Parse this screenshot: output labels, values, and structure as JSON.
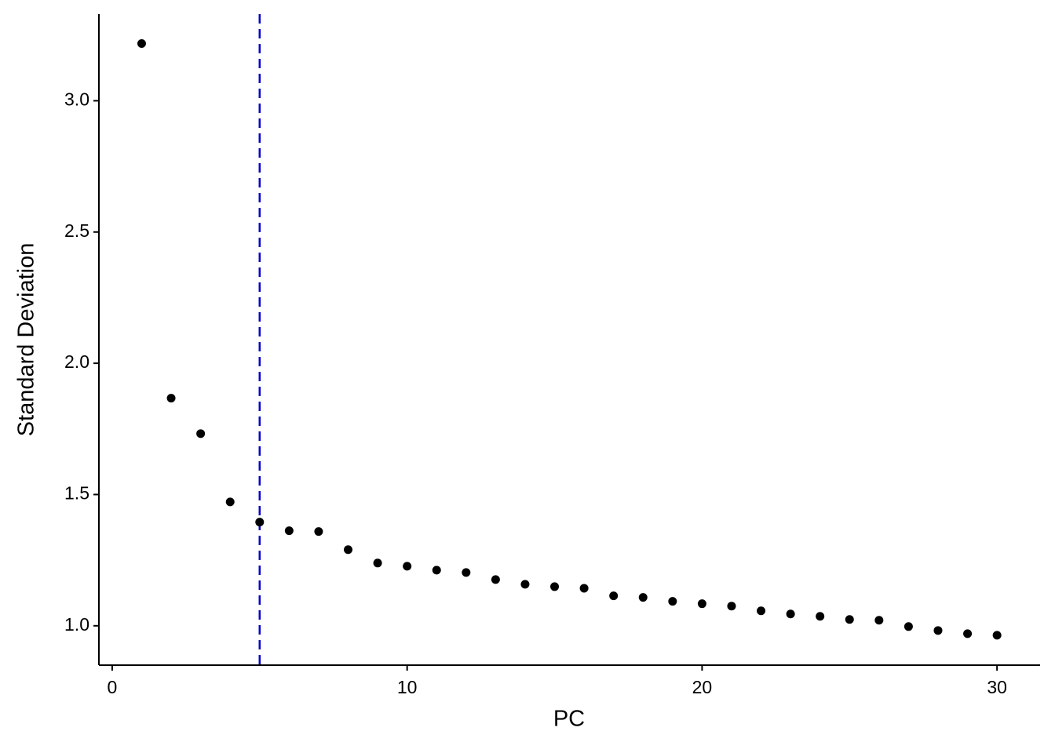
{
  "chart_data": {
    "type": "scatter",
    "x_label": "PC",
    "y_label": "Standard Deviation",
    "x": [
      1,
      2,
      3,
      4,
      5,
      6,
      7,
      8,
      9,
      10,
      11,
      12,
      13,
      14,
      15,
      16,
      17,
      18,
      19,
      20,
      21,
      22,
      23,
      24,
      25,
      26,
      27,
      28,
      29,
      30
    ],
    "values": [
      3.218,
      1.867,
      1.732,
      1.472,
      1.395,
      1.362,
      1.359,
      1.29,
      1.239,
      1.227,
      1.212,
      1.203,
      1.176,
      1.158,
      1.149,
      1.143,
      1.114,
      1.108,
      1.093,
      1.084,
      1.075,
      1.057,
      1.045,
      1.036,
      1.024,
      1.021,
      0.997,
      0.982,
      0.97,
      0.964
    ],
    "color": "#000000",
    "vline": 5,
    "vline_color": "#0000cc",
    "xlim": [
      -0.45,
      31.46
    ],
    "ylim": [
      0.85,
      3.33
    ],
    "xticks": [
      0,
      10,
      20,
      30
    ],
    "yticks": [
      {
        "value": 1,
        "label": "1.0"
      },
      {
        "value": 1.5,
        "label": "1.5"
      },
      {
        "value": 2,
        "label": "2.0"
      },
      {
        "value": 2.5,
        "label": "2.5"
      },
      {
        "value": 3,
        "label": "3.0"
      }
    ]
  }
}
